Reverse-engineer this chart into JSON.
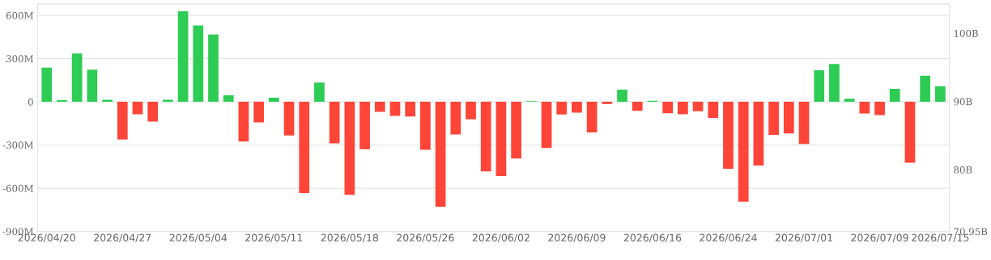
{
  "chart_data": {
    "type": "bar",
    "categories": [
      "2026/04/20",
      null,
      null,
      null,
      null,
      "2026/04/27",
      null,
      null,
      null,
      null,
      "2026/05/04",
      null,
      null,
      null,
      null,
      "2026/05/11",
      null,
      null,
      null,
      null,
      "2026/05/18",
      null,
      null,
      null,
      null,
      "2026/05/26",
      null,
      null,
      null,
      null,
      "2026/06/02",
      null,
      null,
      null,
      null,
      "2026/06/09",
      null,
      null,
      null,
      null,
      "2026/06/16",
      null,
      null,
      null,
      null,
      "2026/06/24",
      null,
      null,
      null,
      null,
      "2026/07/01",
      null,
      null,
      null,
      null,
      "2026/07/09",
      null,
      null,
      null,
      "2026/07/15"
    ],
    "values": [
      237,
      12,
      335,
      223,
      15,
      -262,
      -87,
      -137,
      15,
      629,
      531,
      467,
      46,
      -275,
      -142,
      29,
      -233,
      -633,
      133,
      -288,
      -646,
      -329,
      -69,
      -98,
      -102,
      -333,
      -729,
      -227,
      -121,
      -483,
      -515,
      -394,
      5,
      -321,
      -88,
      -75,
      -212,
      -15,
      85,
      -62,
      8,
      -79,
      -87,
      -65,
      -112,
      -465,
      -694,
      -442,
      -229,
      -219,
      -292,
      219,
      263,
      21,
      -81,
      -92,
      90,
      -423,
      181,
      108
    ],
    "colors": [
      "#2ecc55",
      "#2ecc55",
      "#2ecc55",
      "#2ecc55",
      "#2ecc55",
      "#ff4438",
      "#ff4438",
      "#ff4438",
      "#2ecc55",
      "#2ecc55",
      "#2ecc55",
      "#2ecc55",
      "#2ecc55",
      "#ff4438",
      "#ff4438",
      "#2ecc55",
      "#ff4438",
      "#ff4438",
      "#2ecc55",
      "#ff4438",
      "#ff4438",
      "#ff4438",
      "#ff4438",
      "#ff4438",
      "#ff4438",
      "#ff4438",
      "#ff4438",
      "#ff4438",
      "#ff4438",
      "#ff4438",
      "#ff4438",
      "#ff4438",
      "#2ecc55",
      "#ff4438",
      "#ff4438",
      "#ff4438",
      "#ff4438",
      "#ff4438",
      "#2ecc55",
      "#ff4438",
      "#2ecc55",
      "#ff4438",
      "#ff4438",
      "#ff4438",
      "#ff4438",
      "#ff4438",
      "#ff4438",
      "#ff4438",
      "#ff4438",
      "#ff4438",
      "#ff4438",
      "#2ecc55",
      "#2ecc55",
      "#2ecc55",
      "#ff4438",
      "#ff4438",
      "#2ecc55",
      "#ff4438",
      "#2ecc55",
      "#2ecc55"
    ],
    "ylim": [
      -900,
      680
    ],
    "yticks": [
      {
        "value": -900,
        "label": "-900M"
      },
      {
        "value": -600,
        "label": "-600M"
      },
      {
        "value": -300,
        "label": "-300M"
      },
      {
        "value": 0,
        "label": "0"
      },
      {
        "value": 300,
        "label": "300M"
      },
      {
        "value": 600,
        "label": "600M"
      }
    ],
    "y2lim": [
      70.95,
      104.3
    ],
    "y2ticks": [
      {
        "value": 70.95,
        "label": "70.95B"
      },
      {
        "value": 80,
        "label": "80B"
      },
      {
        "value": 90,
        "label": "90B"
      },
      {
        "value": 100,
        "label": "100B"
      }
    ],
    "grid": "y",
    "legend": false
  }
}
